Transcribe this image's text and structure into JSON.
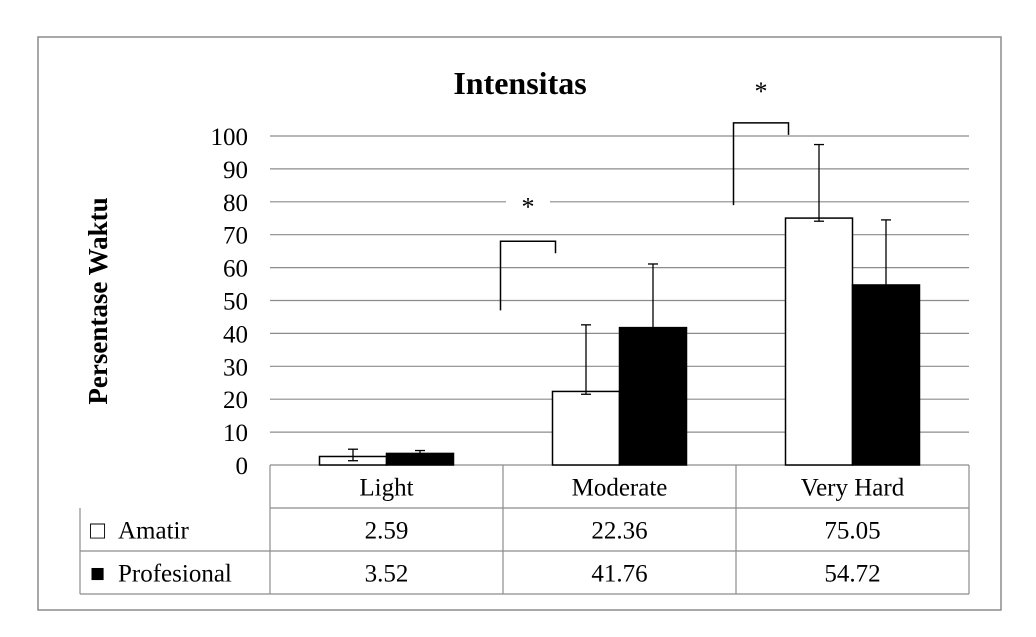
{
  "chart_data": {
    "type": "bar",
    "title": "Intensitas",
    "xlabel": "",
    "ylabel": "Persentase Waktu",
    "ylim": [
      0,
      100
    ],
    "yticks": [
      0,
      10,
      20,
      30,
      40,
      50,
      60,
      70,
      80,
      90,
      100
    ],
    "grid": true,
    "legend": "data-table-left",
    "categories": [
      "Light",
      "Moderate",
      "Very Hard"
    ],
    "series": [
      {
        "name": "Amatir",
        "legend_symbol": "□",
        "color": "#ffffff",
        "values": [
          2.59,
          22.36,
          75.05
        ],
        "labels": [
          "2.59",
          "22.36",
          "75.05"
        ],
        "error_upper": [
          4.8,
          42.6,
          97.4
        ],
        "error_lower": [
          1.3,
          21.5,
          74.1
        ]
      },
      {
        "name": "Profesional",
        "legend_symbol": "■",
        "color": "#000000",
        "values": [
          3.52,
          41.76,
          54.72
        ],
        "labels": [
          "3.52",
          "41.76",
          "54.72"
        ],
        "error_upper": [
          4.4,
          61.1,
          74.5
        ],
        "error_lower": [
          null,
          null,
          null
        ]
      }
    ],
    "annotations": [
      {
        "text": "*",
        "category": "Moderate",
        "bracket_top": 68,
        "bracket_bottom": 47,
        "label_y": 78
      },
      {
        "text": "*",
        "category": "Very Hard",
        "bracket_top": 104,
        "bracket_bottom": 79,
        "label_y": 113
      }
    ]
  }
}
